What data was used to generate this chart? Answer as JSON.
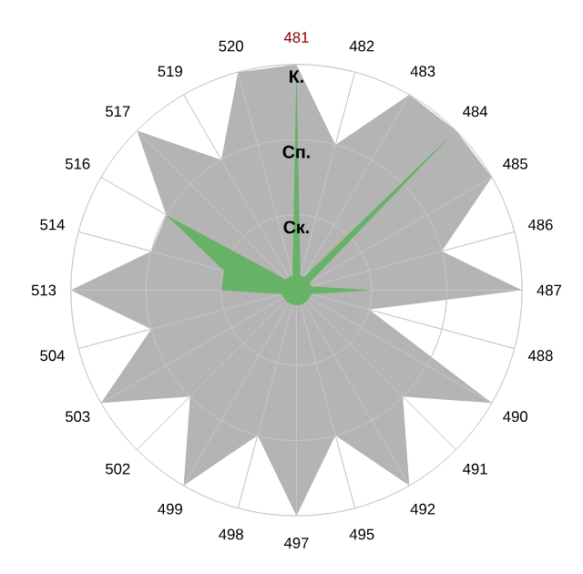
{
  "chart_data": {
    "type": "radar",
    "categories": [
      "481",
      "482",
      "483",
      "484",
      "485",
      "486",
      "487",
      "488",
      "490",
      "491",
      "492",
      "495",
      "497",
      "498",
      "499",
      "502",
      "503",
      "504",
      "513",
      "514",
      "516",
      "517",
      "519",
      "520"
    ],
    "series": [
      {
        "color": "#b4b4b4",
        "values": [
          3,
          2,
          3,
          3,
          3,
          2,
          3,
          1,
          3,
          2,
          3,
          2,
          3,
          2,
          3,
          2,
          3,
          2,
          3,
          2,
          2,
          3,
          2,
          3
        ]
      },
      {
        "color": "#66b266",
        "values": [
          3,
          0.2,
          0.2,
          3,
          0.2,
          0.2,
          1,
          0.2,
          0.2,
          0.2,
          0.2,
          0.2,
          0.2,
          0.2,
          0.2,
          0.2,
          0.2,
          0.2,
          1,
          1,
          2,
          0.2,
          0.2,
          0.2
        ]
      }
    ],
    "ylim": [
      0,
      3
    ],
    "yticks": [
      {
        "value": 1,
        "label": "Ск."
      },
      {
        "value": 2,
        "label": "Сп."
      },
      {
        "value": 3,
        "label": "К."
      }
    ],
    "grid": true
  }
}
